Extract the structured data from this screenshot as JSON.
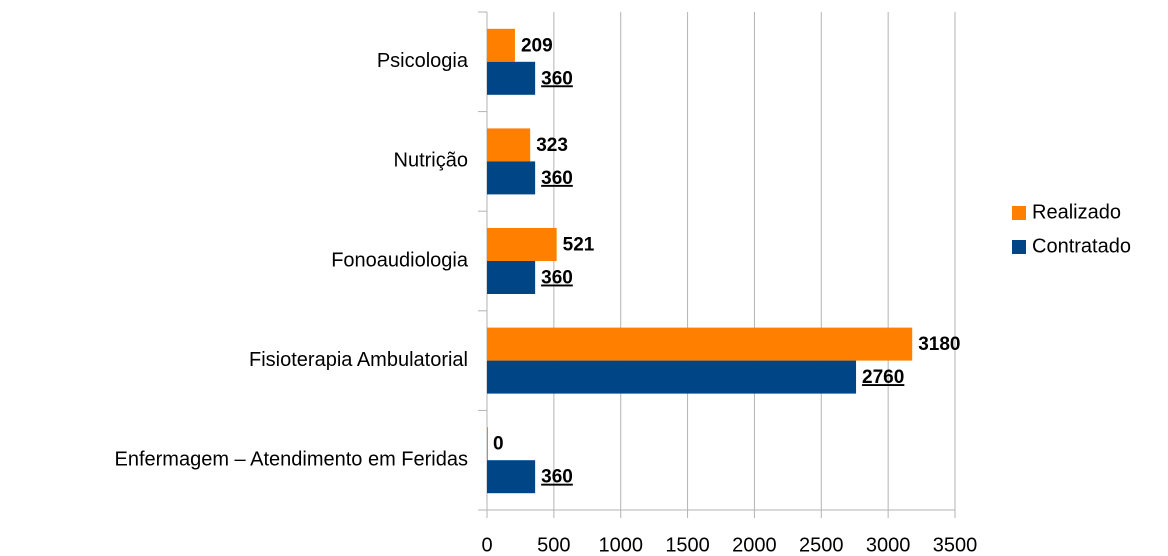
{
  "chart_data": {
    "type": "bar",
    "orientation": "horizontal",
    "categories": [
      "Psicologia",
      "Nutrição",
      "Fonoaudiologia",
      "Fisioterapia Ambulatorial",
      "Enfermagem – Atendimento em Feridas"
    ],
    "series": [
      {
        "name": "Realizado",
        "color": "#ff8000",
        "values": [
          209,
          323,
          521,
          3180,
          0
        ]
      },
      {
        "name": "Contratado",
        "color": "#004586",
        "values": [
          360,
          360,
          360,
          2760,
          360
        ]
      }
    ],
    "xlim": [
      0,
      3500
    ],
    "xticks": [
      0,
      500,
      1000,
      1500,
      2000,
      2500,
      3000,
      3500
    ],
    "grid": true,
    "legend": "right"
  }
}
